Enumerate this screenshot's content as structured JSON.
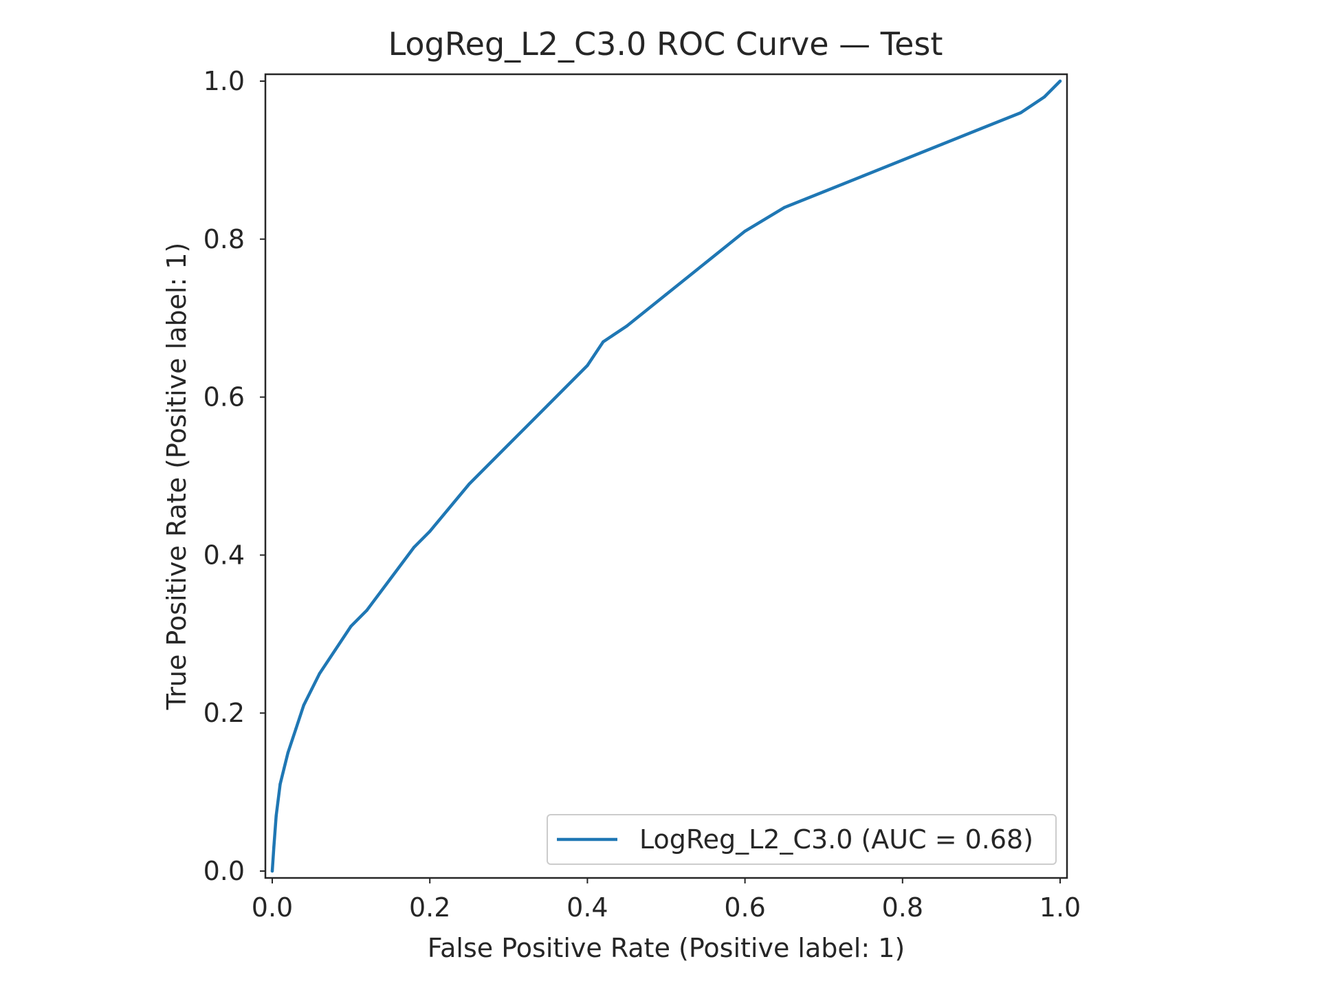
{
  "chart_data": {
    "type": "line",
    "title": "LogReg_L2_C3.0 ROC Curve — Test",
    "xlabel": "False Positive Rate (Positive label: 1)",
    "ylabel": "True Positive Rate (Positive label: 1)",
    "xlim": [
      0.0,
      1.0
    ],
    "ylim": [
      0.0,
      1.0
    ],
    "xticks": [
      "0.0",
      "0.2",
      "0.4",
      "0.6",
      "0.8",
      "1.0"
    ],
    "yticks": [
      "0.0",
      "0.2",
      "0.4",
      "0.6",
      "0.8",
      "1.0"
    ],
    "grid": false,
    "legend_position": "lower-right",
    "series": [
      {
        "name": "LogReg_L2_C3.0 (AUC = 0.68)",
        "color": "#1f77b4",
        "x": [
          0.0,
          0.002,
          0.005,
          0.01,
          0.015,
          0.02,
          0.03,
          0.04,
          0.05,
          0.06,
          0.08,
          0.1,
          0.12,
          0.15,
          0.18,
          0.2,
          0.25,
          0.3,
          0.35,
          0.4,
          0.42,
          0.45,
          0.5,
          0.55,
          0.6,
          0.65,
          0.7,
          0.75,
          0.8,
          0.85,
          0.9,
          0.95,
          0.98,
          1.0
        ],
        "y": [
          0.0,
          0.03,
          0.07,
          0.11,
          0.13,
          0.15,
          0.18,
          0.21,
          0.23,
          0.25,
          0.28,
          0.31,
          0.33,
          0.37,
          0.41,
          0.43,
          0.49,
          0.54,
          0.59,
          0.64,
          0.67,
          0.69,
          0.73,
          0.77,
          0.81,
          0.84,
          0.86,
          0.88,
          0.9,
          0.92,
          0.94,
          0.96,
          0.98,
          1.0
        ]
      }
    ]
  }
}
